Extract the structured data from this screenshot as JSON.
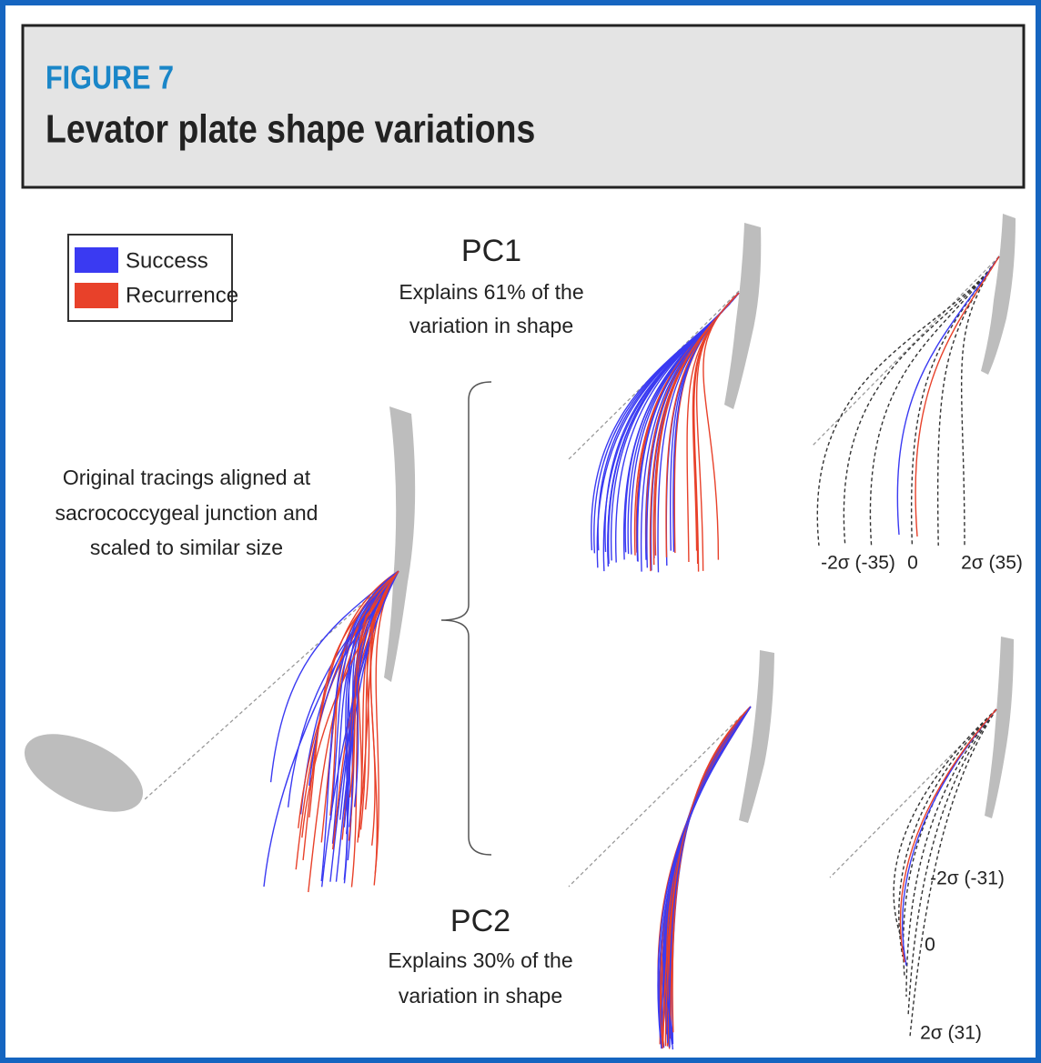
{
  "header": {
    "label": "FIGURE 7",
    "title": "Levator plate shape variations"
  },
  "legend": [
    {
      "label": "Success",
      "color": "#3a3af2"
    },
    {
      "label": "Recurrence",
      "color": "#e8412a"
    }
  ],
  "left_panel": {
    "caption": [
      "Original tracings aligned at",
      "sacrococcygeal junction and",
      "scaled to similar size"
    ]
  },
  "pc1": {
    "title": "PC1",
    "description": [
      "Explains 61% of the",
      "variation in shape"
    ],
    "labels": [
      "-2σ (-35)",
      "0",
      "2σ (35)"
    ]
  },
  "pc2": {
    "title": "PC2",
    "description": [
      "Explains 30% of the",
      "variation in shape"
    ],
    "labels": [
      "-2σ (-31)",
      "0",
      "2σ (31)"
    ]
  }
}
